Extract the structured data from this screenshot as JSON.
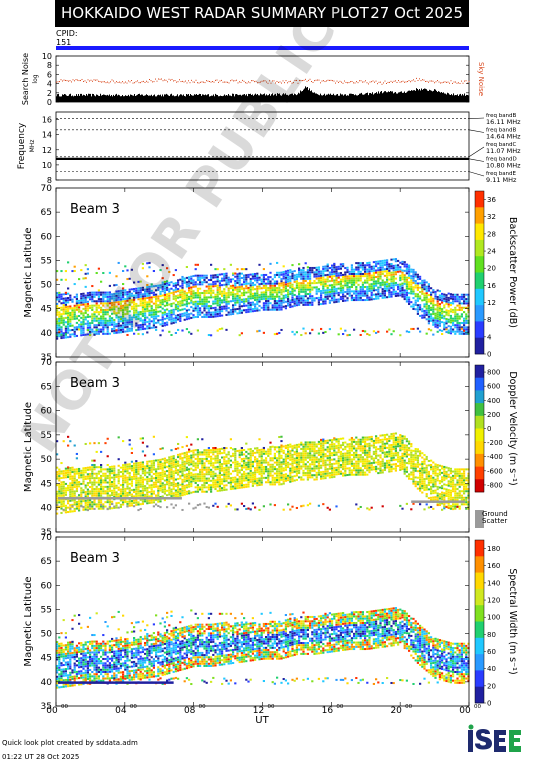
{
  "header": {
    "title": "HOKKAIDO WEST RADAR SUMMARY PLOT",
    "date": "27 Oct 2025",
    "cpid_label": "CPID:",
    "cpid_value": "151"
  },
  "footer": {
    "credit_line1": "Quick look plot created by sddata.adm",
    "credit_line2": "01:22 UT 28 Oct 2025",
    "logo_text": "ISEE"
  },
  "watermark": "NOT FOR PUBLICATION",
  "colors": {
    "cpid_bar": "#1a1aff",
    "sky_noise": "#d9471c",
    "ground_scatter": "#9a9a9a"
  },
  "chart_data": [
    {
      "type": "bar",
      "name": "search-noise",
      "ylabel": "Search Noise",
      "ylabel_sub": "log",
      "ylim": [
        0,
        10
      ],
      "yticks": [
        0,
        2,
        4,
        6,
        8,
        10
      ],
      "right_label": "Sky Noise",
      "x_hours": [
        0,
        2,
        4,
        6,
        8,
        10,
        12,
        14,
        14.5,
        15,
        16,
        18,
        19,
        20,
        21,
        22,
        23,
        24
      ],
      "search_noise": [
        1.5,
        1.5,
        1.5,
        1.5,
        1.5,
        1.5,
        1.6,
        1.7,
        3.3,
        1.8,
        1.6,
        1.7,
        2.2,
        2.0,
        2.8,
        2.5,
        1.6,
        1.6
      ],
      "sky_noise": [
        4.6,
        4.7,
        4.5,
        4.8,
        4.5,
        4.6,
        4.4,
        4.5,
        4.8,
        4.6,
        4.5,
        4.4,
        4.3,
        4.5,
        5.0,
        4.6,
        4.4,
        4.4
      ]
    },
    {
      "type": "line",
      "name": "frequency",
      "ylabel": "Frequency",
      "ylabel_sub": "MHz",
      "ylim": [
        8,
        17
      ],
      "yticks": [
        8,
        10,
        12,
        14,
        16
      ],
      "operating_frequency": 10.8,
      "bands": [
        {
          "label": "freq bandB",
          "value": "16.11 MHz",
          "mhz": 16.11
        },
        {
          "label": "freq bandB",
          "value": "14.64 MHz",
          "mhz": 14.64
        },
        {
          "label": "freq bandC",
          "value": "11.07 MHz",
          "mhz": 11.07
        },
        {
          "label": "freq bandD",
          "value": "10.80 MHz",
          "mhz": 10.8
        },
        {
          "label": "freq bandE",
          "value": "9.11 MHz",
          "mhz": 9.11
        }
      ]
    },
    {
      "type": "heatmap",
      "name": "backscatter-power",
      "beam": "Beam  3",
      "ylabel": "Magnetic Latitude",
      "ylim": [
        35,
        70
      ],
      "yticks": [
        35,
        40,
        45,
        50,
        55,
        60,
        65,
        70
      ],
      "colorbar_label": "Backscatter Power (dB)",
      "colorbar_ticks": [
        0,
        4,
        8,
        12,
        16,
        20,
        24,
        28,
        32,
        36
      ],
      "colorbar_range": [
        0,
        38
      ]
    },
    {
      "type": "heatmap",
      "name": "doppler-velocity",
      "beam": "Beam  3",
      "ylabel": "Magnetic Latitude",
      "ylim": [
        35,
        70
      ],
      "yticks": [
        35,
        40,
        45,
        50,
        55,
        60,
        65,
        70
      ],
      "colorbar_label": "Doppler Velocity (m s⁻¹)",
      "colorbar_ticks": [
        800,
        600,
        400,
        200,
        0,
        -200,
        -400,
        -600,
        -800
      ],
      "colorbar_range": [
        -900,
        900
      ],
      "ground_scatter_label": "Ground Scatter"
    },
    {
      "type": "heatmap",
      "name": "spectral-width",
      "beam": "Beam  3",
      "ylabel": "Magnetic Latitude",
      "ylim": [
        35,
        70
      ],
      "yticks": [
        35,
        40,
        45,
        50,
        55,
        60,
        65,
        70
      ],
      "colorbar_label": "Spectral Width (m s⁻¹)",
      "colorbar_ticks": [
        0,
        20,
        40,
        60,
        80,
        100,
        120,
        140,
        160,
        180
      ],
      "colorbar_range": [
        0,
        190
      ]
    }
  ],
  "x_axis": {
    "label": "UT",
    "ticks": [
      {
        "hour": 0,
        "label": "00",
        "sup": "00"
      },
      {
        "hour": 4,
        "label": "04",
        "sup": "00"
      },
      {
        "hour": 8,
        "label": "08",
        "sup": "00"
      },
      {
        "hour": 12,
        "label": "12",
        "sup": "00"
      },
      {
        "hour": 16,
        "label": "16",
        "sup": "00"
      },
      {
        "hour": 20,
        "label": "20",
        "sup": "00"
      },
      {
        "hour": 24,
        "label": "00",
        "sup": "00"
      }
    ]
  },
  "echo_region": {
    "x_hours": [
      0,
      1,
      2,
      3,
      4,
      5,
      6,
      7,
      8,
      9,
      10,
      11,
      12,
      13,
      14,
      15,
      16,
      17,
      18,
      19,
      20,
      21,
      22,
      23,
      24
    ],
    "lower_lat": [
      41,
      41.5,
      42,
      42,
      42.5,
      43,
      43.5,
      44.5,
      45.5,
      45.5,
      46,
      46.5,
      47,
      47,
      48,
      48,
      48.5,
      49,
      49,
      49.5,
      50,
      46,
      43,
      42,
      42
    ],
    "upper_lat": [
      46,
      46,
      46.5,
      46.5,
      47,
      47.5,
      48,
      49,
      50,
      50,
      50,
      50,
      50,
      50.5,
      51,
      51.5,
      52,
      52,
      52.5,
      53,
      53,
      50,
      47,
      46,
      46
    ]
  }
}
